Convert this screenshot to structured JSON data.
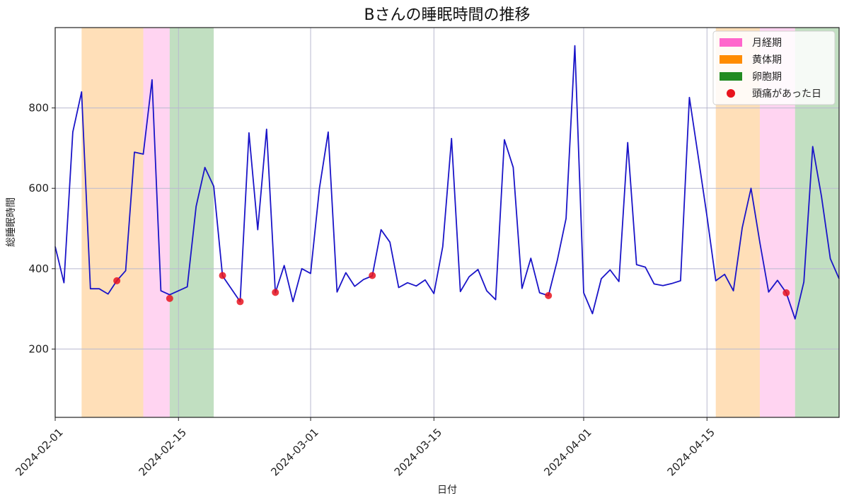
{
  "chart_data": {
    "type": "line",
    "title": "Bさんの睡眠時間の推移",
    "xlabel": "日付",
    "ylabel": "総睡眠時間",
    "ylim": [
      30,
      1000
    ],
    "xlim": [
      "2024-02-01",
      "2024-04-30"
    ],
    "grid": true,
    "legend_position": "top-right",
    "x_ticks": [
      "2024-02-01",
      "2024-02-15",
      "2024-03-01",
      "2024-03-15",
      "2024-04-01",
      "2024-04-15"
    ],
    "y_ticks": [
      200,
      400,
      600,
      800
    ],
    "series": [
      {
        "color": "#1a14c8",
        "points": [
          [
            "2024-02-01",
            455
          ],
          [
            "2024-02-02",
            365
          ],
          [
            "2024-02-03",
            740
          ],
          [
            "2024-02-04",
            840
          ],
          [
            "2024-02-05",
            350
          ],
          [
            "2024-02-06",
            350
          ],
          [
            "2024-02-07",
            337
          ],
          [
            "2024-02-08",
            370
          ],
          [
            "2024-02-09",
            395
          ],
          [
            "2024-02-10",
            690
          ],
          [
            "2024-02-11",
            685
          ],
          [
            "2024-02-12",
            870
          ],
          [
            "2024-02-13",
            345
          ],
          [
            "2024-02-14",
            335
          ],
          [
            "2024-02-15",
            345
          ],
          [
            "2024-02-16",
            355
          ],
          [
            "2024-02-17",
            555
          ],
          [
            "2024-02-18",
            652
          ],
          [
            "2024-02-19",
            605
          ],
          [
            "2024-02-20",
            382
          ],
          [
            "2024-02-21",
            350
          ],
          [
            "2024-02-22",
            318
          ],
          [
            "2024-02-23",
            738
          ],
          [
            "2024-02-24",
            497
          ],
          [
            "2024-02-25",
            747
          ],
          [
            "2024-02-26",
            340
          ],
          [
            "2024-02-27",
            408
          ],
          [
            "2024-02-28",
            318
          ],
          [
            "2024-02-29",
            400
          ],
          [
            "2024-03-01",
            388
          ],
          [
            "2024-03-02",
            600
          ],
          [
            "2024-03-03",
            740
          ],
          [
            "2024-03-04",
            342
          ],
          [
            "2024-03-05",
            390
          ],
          [
            "2024-03-06",
            356
          ],
          [
            "2024-03-07",
            373
          ],
          [
            "2024-03-08",
            382
          ],
          [
            "2024-03-09",
            497
          ],
          [
            "2024-03-10",
            466
          ],
          [
            "2024-03-11",
            353
          ],
          [
            "2024-03-12",
            365
          ],
          [
            "2024-03-13",
            357
          ],
          [
            "2024-03-14",
            372
          ],
          [
            "2024-03-15",
            338
          ],
          [
            "2024-03-16",
            455
          ],
          [
            "2024-03-17",
            724
          ],
          [
            "2024-03-18",
            343
          ],
          [
            "2024-03-19",
            380
          ],
          [
            "2024-03-20",
            398
          ],
          [
            "2024-03-21",
            345
          ],
          [
            "2024-03-22",
            323
          ],
          [
            "2024-03-23",
            721
          ],
          [
            "2024-03-24",
            652
          ],
          [
            "2024-03-25",
            351
          ],
          [
            "2024-03-26",
            426
          ],
          [
            "2024-03-27",
            340
          ],
          [
            "2024-03-28",
            333
          ],
          [
            "2024-03-29",
            420
          ],
          [
            "2024-03-30",
            525
          ],
          [
            "2024-03-31",
            955
          ],
          [
            "2024-04-01",
            340
          ],
          [
            "2024-04-02",
            288
          ],
          [
            "2024-04-03",
            375
          ],
          [
            "2024-04-04",
            397
          ],
          [
            "2024-04-05",
            368
          ],
          [
            "2024-04-06",
            714
          ],
          [
            "2024-04-07",
            410
          ],
          [
            "2024-04-08",
            404
          ],
          [
            "2024-04-09",
            362
          ],
          [
            "2024-04-10",
            358
          ],
          [
            "2024-04-11",
            363
          ],
          [
            "2024-04-12",
            370
          ],
          [
            "2024-04-13",
            826
          ],
          [
            "2024-04-14",
            680
          ],
          [
            "2024-04-15",
            530
          ],
          [
            "2024-04-16",
            370
          ],
          [
            "2024-04-17",
            386
          ],
          [
            "2024-04-18",
            345
          ],
          [
            "2024-04-19",
            502
          ],
          [
            "2024-04-20",
            600
          ],
          [
            "2024-04-21",
            465
          ],
          [
            "2024-04-22",
            342
          ],
          [
            "2024-04-23",
            371
          ],
          [
            "2024-04-24",
            340
          ],
          [
            "2024-04-25",
            275
          ],
          [
            "2024-04-26",
            367
          ],
          [
            "2024-04-27",
            704
          ],
          [
            "2024-04-28",
            580
          ],
          [
            "2024-04-29",
            425
          ],
          [
            "2024-04-30",
            375
          ]
        ]
      }
    ],
    "phases": [
      {
        "label": "黄体期",
        "start": "2024-02-04",
        "end": "2024-02-11",
        "color": "#ff8c00"
      },
      {
        "label": "月経期",
        "start": "2024-02-11",
        "end": "2024-02-14",
        "color": "#ff66cc"
      },
      {
        "label": "卵胞期",
        "start": "2024-02-14",
        "end": "2024-02-19",
        "color": "#228b22"
      },
      {
        "label": "黄体期",
        "start": "2024-04-16",
        "end": "2024-04-21",
        "color": "#ff8c00"
      },
      {
        "label": "月経期",
        "start": "2024-04-21",
        "end": "2024-04-25",
        "color": "#ff66cc"
      },
      {
        "label": "卵胞期",
        "start": "2024-04-25",
        "end": "2024-04-30",
        "color": "#228b22"
      }
    ],
    "headache_days": [
      [
        "2024-02-08",
        370
      ],
      [
        "2024-02-14",
        326
      ],
      [
        "2024-02-20",
        383
      ],
      [
        "2024-02-22",
        318
      ],
      [
        "2024-02-26",
        341
      ],
      [
        "2024-03-08",
        383
      ],
      [
        "2024-03-28",
        333
      ],
      [
        "2024-04-24",
        340
      ]
    ],
    "headache_color": "#e8141e",
    "legend": [
      {
        "label": "月経期",
        "kind": "patch",
        "color": "#ff66cc"
      },
      {
        "label": "黄体期",
        "kind": "patch",
        "color": "#ff8c00"
      },
      {
        "label": "卵胞期",
        "kind": "patch",
        "color": "#228b22"
      },
      {
        "label": "頭痛があった日",
        "kind": "dot",
        "color": "#e8141e"
      }
    ]
  }
}
